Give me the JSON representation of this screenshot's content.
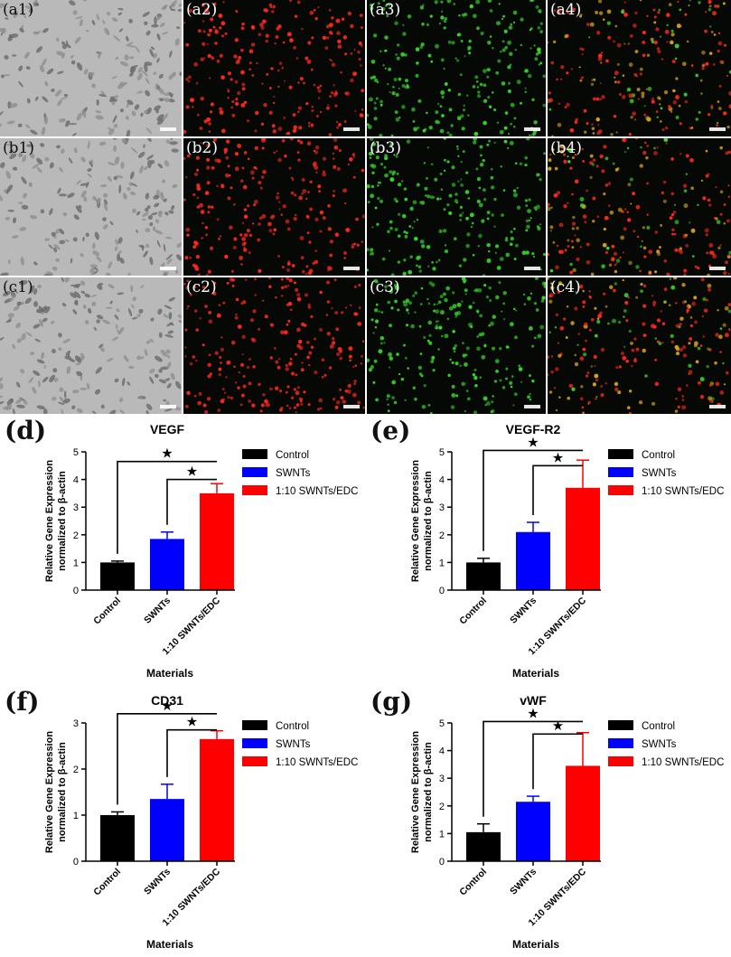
{
  "panels": {
    "rows": [
      [
        "(a1)",
        "(a2)",
        "(a3)",
        "(a4)"
      ],
      [
        "(b1)",
        "(b2)",
        "(b3)",
        "(b4)"
      ],
      [
        "(c1)",
        "(c2)",
        "(c3)",
        "(c4)"
      ]
    ],
    "column_types": [
      "brightfield",
      "red",
      "green",
      "merge"
    ]
  },
  "colors": {
    "control": "#000000",
    "swnts": "#0000ff",
    "edc": "#ff0000",
    "green_fluor": "#39d62b",
    "red_fluor": "#ff2a1a"
  },
  "chart_data": [
    {
      "type": "bar",
      "panel_label": "(d)",
      "title": "VEGF",
      "categories": [
        "Control",
        "SWNTs",
        "1:10 SWNTs/EDC"
      ],
      "values": [
        1.0,
        1.85,
        3.5
      ],
      "errors": [
        0.05,
        0.25,
        0.35
      ],
      "xlabel": "Materials",
      "ylabel": [
        "Relative Gene Expression",
        "normalized to β-actin"
      ],
      "ylim": [
        0,
        5
      ],
      "yticks": [
        0,
        1,
        2,
        3,
        4,
        5
      ],
      "legend": [
        "Control",
        "SWNTs",
        "1:10 SWNTs/EDC"
      ],
      "legend_position": "right",
      "significance": [
        {
          "from": 0,
          "to": 2,
          "y": 4.65,
          "mark": "★"
        },
        {
          "from": 1,
          "to": 2,
          "y": 4.0,
          "mark": "★"
        }
      ]
    },
    {
      "type": "bar",
      "panel_label": "(e)",
      "title": "VEGF-R2",
      "categories": [
        "Control",
        "SWNTs",
        "1:10 SWNTs/EDC"
      ],
      "values": [
        1.0,
        2.1,
        3.7
      ],
      "errors": [
        0.15,
        0.35,
        1.0
      ],
      "xlabel": "Materials",
      "ylabel": [
        "Relative Gene Expression",
        "normalized to β-actin"
      ],
      "ylim": [
        0,
        5
      ],
      "yticks": [
        0,
        1,
        2,
        3,
        4,
        5
      ],
      "legend": [
        "Control",
        "SWNTs",
        "1:10 SWNTs/EDC"
      ],
      "legend_position": "right",
      "significance": [
        {
          "from": 0,
          "to": 2,
          "y": 5.05,
          "mark": "★"
        },
        {
          "from": 1,
          "to": 2,
          "y": 4.5,
          "mark": "★"
        }
      ]
    },
    {
      "type": "bar",
      "panel_label": "(f)",
      "title": "CD31",
      "categories": [
        "Control",
        "SWNTs",
        "1:10 SWNTs/EDC"
      ],
      "values": [
        1.0,
        1.35,
        2.65
      ],
      "errors": [
        0.07,
        0.32,
        0.18
      ],
      "xlabel": "Materials",
      "ylabel": [
        "Relative Gene Expression",
        "normalized to β-actin"
      ],
      "ylim": [
        0,
        3
      ],
      "yticks": [
        0,
        1,
        2,
        3
      ],
      "legend": [
        "Control",
        "SWNTs",
        "1:10 SWNTs/EDC"
      ],
      "legend_position": "right",
      "significance": [
        {
          "from": 0,
          "to": 2,
          "y": 3.2,
          "mark": "★"
        },
        {
          "from": 1,
          "to": 2,
          "y": 2.85,
          "mark": "★"
        }
      ]
    },
    {
      "type": "bar",
      "panel_label": "(g)",
      "title": "vWF",
      "categories": [
        "Control",
        "SWNTs",
        "1:10 SWNTs/EDC"
      ],
      "values": [
        1.05,
        2.15,
        3.45
      ],
      "errors": [
        0.3,
        0.2,
        1.2
      ],
      "xlabel": "Materials",
      "ylabel": [
        "Relative Gene Expression",
        "normalized to β-actin"
      ],
      "ylim": [
        0,
        5
      ],
      "yticks": [
        0,
        1,
        2,
        3,
        4,
        5
      ],
      "legend": [
        "Control",
        "SWNTs",
        "1:10 SWNTs/EDC"
      ],
      "legend_position": "right",
      "significance": [
        {
          "from": 0,
          "to": 2,
          "y": 5.05,
          "mark": "★"
        },
        {
          "from": 1,
          "to": 2,
          "y": 4.6,
          "mark": "★"
        }
      ]
    }
  ]
}
